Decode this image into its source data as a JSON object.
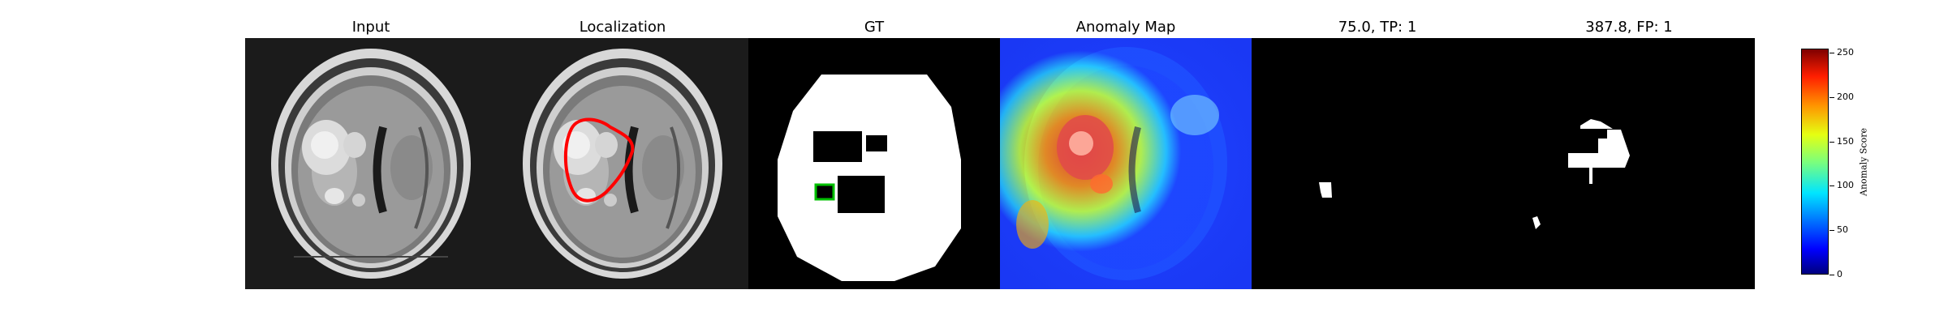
{
  "panels": [
    {
      "title": "Input"
    },
    {
      "title": "Localization"
    },
    {
      "title": "GT"
    },
    {
      "title": "Anomaly Map"
    },
    {
      "title": "75.0, TP: 1"
    },
    {
      "title": "387.8, FP: 1"
    }
  ],
  "colorbar": {
    "label": "Anomaly Score",
    "ticks": [
      "0",
      "50",
      "100",
      "150",
      "200",
      "250"
    ],
    "min": 0,
    "max": 255
  },
  "colors": {
    "localization_outline": "#ff0000",
    "gt_box_outline": "#00c000"
  }
}
